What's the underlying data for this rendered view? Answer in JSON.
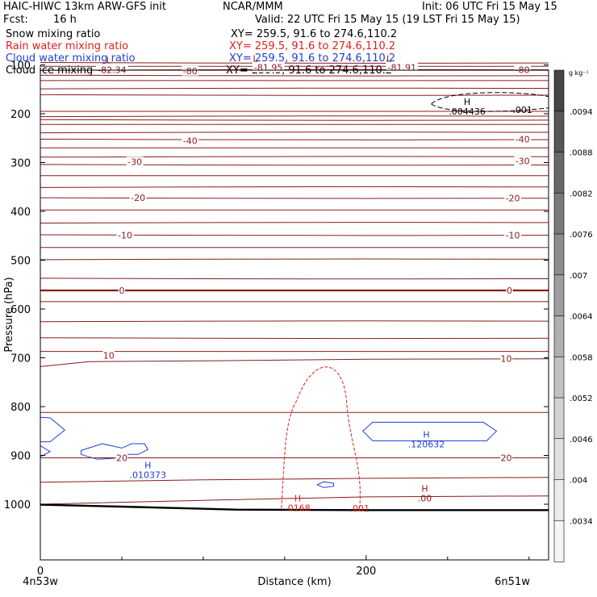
{
  "header": {
    "model": "HAIC-HIWC 13km ARW-GFS init",
    "org": "NCAR/MMM",
    "init": "Init: 06 UTC Fri 15 May 15",
    "fcst_label": "Fcst:",
    "fcst_value": "16 h",
    "valid": "Valid: 22 UTC Fri 15 May 15 (19 LST Fri 15 May 15)"
  },
  "fields": [
    {
      "name": "Snow mixing ratio",
      "xy": "XY= 259.5, 91.6 to 274.6,110.2",
      "color": "#000000"
    },
    {
      "name": "Rain water mixing ratio",
      "xy": "XY= 259.5, 91.6 to 274.6,110.2",
      "color": "#e0201b"
    },
    {
      "name": "Cloud water mixing ratio",
      "xy": "XY= 259.5, 91.6 to 274.6,110.2",
      "color": "#1f3fd0"
    },
    {
      "name": "Cloud ice mixing ratio",
      "xy": "XY= 259.5, 91.6 to 274.6,110.2",
      "color": "#000000"
    }
  ],
  "colorbar": {
    "unit_label": "g kg⁻¹",
    "labels": [
      ".0094",
      ".0088",
      ".0082",
      ".0076",
      ".007",
      ".0064",
      ".0058",
      ".0052",
      ".0046",
      ".004",
      ".0034"
    ],
    "shades": [
      "#454545",
      "#565656",
      "#686868",
      "#7a7a7a",
      "#8c8c8c",
      "#9e9e9e",
      "#b0b0b0",
      "#c2c2c2",
      "#d2d2d2",
      "#e0e0e0",
      "#ececec",
      "#f6f6f6"
    ]
  },
  "chart_data": {
    "type": "line",
    "title": "HAIC-HIWC 13km ARW-GFS init",
    "xlabel": "Distance (km)",
    "ylabel": "Pressure (hPa)",
    "xlim": [
      0,
      312
    ],
    "ylim": [
      1050,
      50
    ],
    "x_ticks": [
      0,
      200
    ],
    "y_ticks": [
      100,
      200,
      300,
      400,
      500,
      600,
      700,
      800,
      900,
      1000
    ],
    "x_end_labels": {
      "left": "4n53w",
      "right": "6n51w"
    },
    "isotherm_color": "#8b1a1a",
    "isotherms": [
      {
        "label": "-82.34",
        "x": 44,
        "p": 110
      },
      {
        "label": "-81.95",
        "x": 140,
        "p": 105
      },
      {
        "label": "-81.91",
        "x": 222,
        "p": 105
      },
      {
        "label": "-80",
        "x": 92,
        "p": 112
      },
      {
        "label": "-80",
        "x": 296,
        "p": 110
      },
      {
        "label": "-40",
        "x": 92,
        "p": 255
      },
      {
        "label": "-40",
        "x": 296,
        "p": 252
      },
      {
        "label": "-30",
        "x": 58,
        "p": 298
      },
      {
        "label": "-30",
        "x": 296,
        "p": 297
      },
      {
        "label": "-20",
        "x": 60,
        "p": 372
      },
      {
        "label": "-20",
        "x": 290,
        "p": 373
      },
      {
        "label": "-10",
        "x": 52,
        "p": 449
      },
      {
        "label": "-10",
        "x": 290,
        "p": 449
      },
      {
        "label": "0",
        "x": 50,
        "p": 562
      },
      {
        "label": "0",
        "x": 288,
        "p": 562
      },
      {
        "label": "10",
        "x": 42,
        "p": 695
      },
      {
        "label": "10",
        "x": 286,
        "p": 702
      },
      {
        "label": "20",
        "x": 50,
        "p": 905
      },
      {
        "label": "20",
        "x": 286,
        "p": 905
      }
    ],
    "extrema": [
      {
        "kind": "L",
        "x": 42,
        "p": 90,
        "color": "#8b1a1a"
      },
      {
        "kind": "L",
        "x": 132,
        "p": 87,
        "color": "#8b1a1a"
      },
      {
        "kind": "L",
        "x": 214,
        "p": 87,
        "color": "#8b1a1a"
      },
      {
        "kind": "H",
        "x": 262,
        "p": 175,
        "value": ".004436",
        "color": "#000000"
      },
      {
        "kind": "H",
        "x": 237,
        "p": 857,
        "value": ".120632",
        "color": "#1f3fd0"
      },
      {
        "kind": "H",
        "x": 66,
        "p": 920,
        "value": ".010373",
        "color": "#1f3fd0"
      },
      {
        "kind": "H",
        "x": 158,
        "p": 988,
        "value": ".0168",
        "color": "#e0201b"
      },
      {
        "kind": "H",
        "x": 236,
        "p": 968,
        "value": ".00",
        "color": "#8b1a1a"
      }
    ],
    "contour_labels": [
      {
        "label": ".001",
        "x": 296,
        "p": 192,
        "color": "#000000"
      },
      {
        "label": ".001",
        "x": 196,
        "p": 1008,
        "color": "#e0201b"
      }
    ]
  }
}
